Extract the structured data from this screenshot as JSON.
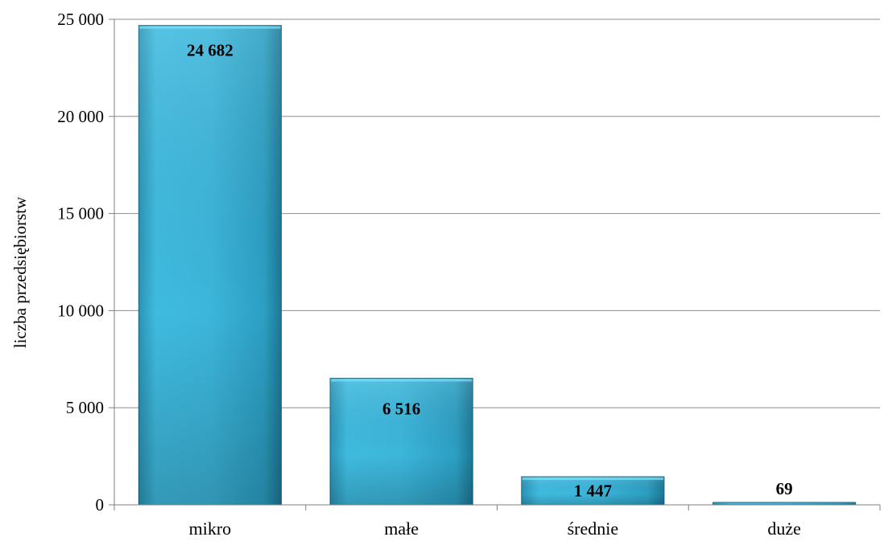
{
  "chart_data": {
    "type": "bar",
    "categories": [
      "mikro",
      "małe",
      "średnie",
      "duże"
    ],
    "values": [
      24682,
      6516,
      1447,
      69
    ],
    "data_labels": [
      "24 682",
      "6 516",
      "1 447",
      "69"
    ],
    "title": "",
    "xlabel": "",
    "ylabel": "liczba przedsiębiorstw",
    "ylim": [
      0,
      25000
    ],
    "yticks": [
      0,
      5000,
      10000,
      15000,
      20000,
      25000
    ],
    "ytick_labels": [
      "0",
      "5 000",
      "10 000",
      "15 000",
      "20 000",
      "25 000"
    ],
    "grid": true,
    "legend": "none",
    "colors": {
      "bar_top": "#46c3e8",
      "bar_mid": "#2fa9cc",
      "bar_bottom": "#1e7f9c",
      "bar_edge": "#17657d",
      "gridline": "#8c8c8c"
    }
  }
}
